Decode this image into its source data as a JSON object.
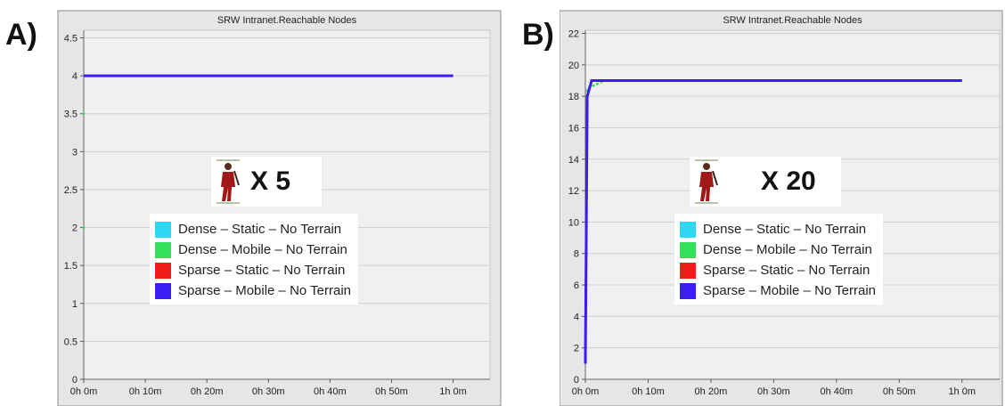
{
  "panels": [
    {
      "letter": "A)",
      "soldier_multiplier": "X 5"
    },
    {
      "letter": "B)",
      "soldier_multiplier": "X 20"
    }
  ],
  "legend": [
    {
      "label": "Dense – Static – No Terrain",
      "color": "#2fd7f0"
    },
    {
      "label": "Dense – Mobile  – No Terrain",
      "color": "#33e05a"
    },
    {
      "label": "Sparse – Static – No Terrain",
      "color": "#f01c1c"
    },
    {
      "label": "Sparse – Mobile – No Terrain",
      "color": "#3a1cf5"
    }
  ],
  "chart_data": [
    {
      "type": "line",
      "title": "SRW Intranet.Reachable Nodes",
      "xlabel": "",
      "ylabel": "",
      "x_tick_labels": [
        "0h 0m",
        "0h 10m",
        "0h 20m",
        "0h 30m",
        "0h 40m",
        "0h 50m",
        "1h 0m"
      ],
      "y_tick_labels": [
        "0",
        "0.5",
        "1",
        "1.5",
        "2",
        "2.5",
        "3",
        "3.5",
        "4",
        "4.5"
      ],
      "xlim_minutes": [
        0,
        66
      ],
      "ylim": [
        0,
        4.6
      ],
      "grid": "horizontal",
      "series": [
        {
          "color": "#2fd7f0",
          "x_minutes": [
            0,
            60
          ],
          "y": [
            4,
            4
          ]
        },
        {
          "color": "#33e05a",
          "x_minutes": [
            0,
            60
          ],
          "y": [
            4,
            4
          ]
        },
        {
          "color": "#f01c1c",
          "x_minutes": [
            0,
            60
          ],
          "y": [
            4,
            4
          ]
        },
        {
          "color": "#3a1cf5",
          "x_minutes": [
            0,
            60
          ],
          "y": [
            4,
            4
          ]
        }
      ],
      "scatter_markers": [
        {
          "color": "#33e05a",
          "x_minutes": 0,
          "y": 3.5
        },
        {
          "color": "#33e05a",
          "x_minutes": 0,
          "y": 2.0
        }
      ]
    },
    {
      "type": "line",
      "title": "SRW Intranet.Reachable Nodes",
      "xlabel": "",
      "ylabel": "",
      "x_tick_labels": [
        "0h 0m",
        "0h 10m",
        "0h 20m",
        "0h 30m",
        "0h 40m",
        "0h 50m",
        "1h 0m"
      ],
      "y_tick_labels": [
        "0",
        "2",
        "4",
        "6",
        "8",
        "10",
        "12",
        "14",
        "16",
        "18",
        "20",
        "22"
      ],
      "xlim_minutes": [
        0,
        66
      ],
      "ylim": [
        0,
        22.2
      ],
      "grid": "horizontal",
      "series": [
        {
          "color": "#2fd7f0",
          "x_minutes": [
            0,
            0.3,
            1,
            60
          ],
          "y": [
            1,
            18,
            19,
            19
          ]
        },
        {
          "color": "#33e05a",
          "x_minutes": [
            0,
            0.3,
            3,
            60
          ],
          "y": [
            1,
            18.5,
            19,
            19
          ]
        },
        {
          "color": "#f01c1c",
          "x_minutes": [
            0,
            0.3,
            1,
            60
          ],
          "y": [
            1,
            18,
            19,
            19
          ]
        },
        {
          "color": "#3a1cf5",
          "x_minutes": [
            0,
            0.3,
            1,
            60
          ],
          "y": [
            1,
            18,
            19,
            19
          ]
        }
      ],
      "scatter_markers": []
    }
  ]
}
